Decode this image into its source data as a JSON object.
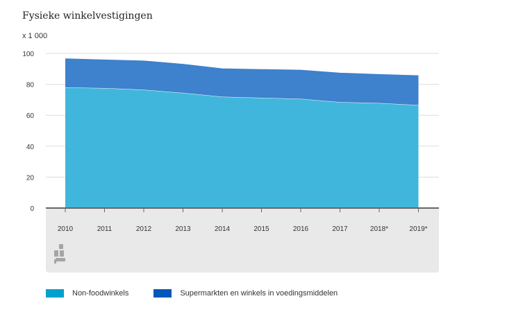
{
  "chart_data": {
    "type": "area",
    "stacked": true,
    "title": "Fysieke winkelvestigingen",
    "unit_label": "x 1 000",
    "x": [
      "2010",
      "2011",
      "2012",
      "2013",
      "2014",
      "2015",
      "2016",
      "2017",
      "2018*",
      "2019*"
    ],
    "yticks": [
      "0",
      "20",
      "40",
      "60",
      "80",
      "100"
    ],
    "ylim": [
      0,
      100
    ],
    "grid": true,
    "legend_position": "bottom",
    "series": [
      {
        "name": "Non-foodwinkels",
        "color": "#41b6dc",
        "legend_color": "#00a1cd",
        "values": [
          78.0,
          77.6,
          76.5,
          74.5,
          72.0,
          71.3,
          70.6,
          68.5,
          67.9,
          66.6
        ]
      },
      {
        "name": "Supermarkten en winkels in voedingsmiddelen",
        "color": "#3e81cc",
        "legend_color": "#0058b8",
        "values": [
          18.5,
          18.2,
          18.6,
          18.5,
          18.1,
          18.3,
          18.6,
          18.8,
          18.5,
          19.0
        ]
      }
    ],
    "totals": [
      96.5,
      95.8,
      95.1,
      93.0,
      90.1,
      89.6,
      89.2,
      87.3,
      86.4,
      85.6
    ]
  }
}
